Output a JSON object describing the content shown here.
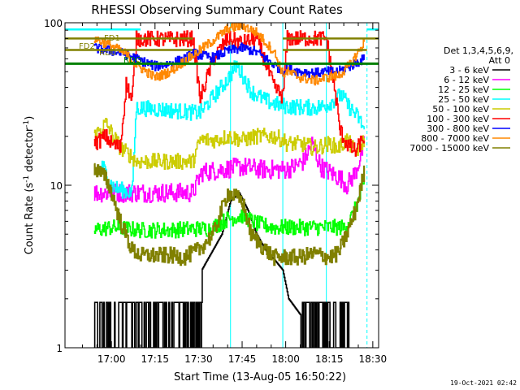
{
  "chart_data": {
    "type": "line",
    "title": "RHESSI Observing Summary Count Rates",
    "xlabel": "Start Time (13-Aug-05 16:50:22)",
    "ylabel_main": "Count Rate (s",
    "ylabel_sup1": "-1",
    "ylabel_mid": " detector",
    "ylabel_sup2": "-1",
    "ylabel_end": ")",
    "y_scale": "log",
    "ylim": [
      1,
      100
    ],
    "xlim_minutes": [
      -6,
      102
    ],
    "y_ticks": [
      "1",
      "10",
      "100"
    ],
    "x_ticks": [
      {
        "m": 10,
        "label": "17:00"
      },
      {
        "m": 25,
        "label": "17:15"
      },
      {
        "m": 40,
        "label": "17:30"
      },
      {
        "m": 55,
        "label": "17:45"
      },
      {
        "m": 70,
        "label": "18:00"
      },
      {
        "m": 85,
        "label": "18:15"
      },
      {
        "m": 100,
        "label": "18:30"
      }
    ],
    "legend_header": [
      "Det 1,3,4,5,6,9,",
      "Att 0"
    ],
    "legend_position": "right",
    "flags": [
      "FD1",
      "FD2",
      "RD0",
      "RDG"
    ],
    "timestamp": "19-Oct-2021 02:42",
    "series": [
      {
        "name": "3 - 6 keV",
        "color": "#000000",
        "x": [
          4,
          18,
          19,
          28,
          29,
          36,
          41,
          48,
          51,
          54,
          57,
          60,
          63,
          66,
          69,
          71,
          75,
          78,
          80,
          84,
          87,
          90,
          92
        ],
        "y": [
          1.5,
          1.5,
          1.4,
          1.4,
          1.5,
          1.5,
          3.0,
          5.0,
          8.0,
          9.0,
          7.0,
          5.0,
          4.0,
          3.5,
          3.0,
          2.0,
          1.6,
          1.5,
          1.5,
          1.6,
          1.5,
          1.5,
          1.5
        ]
      },
      {
        "name": "6 - 12 keV",
        "color": "#ff00ff",
        "x": [
          4,
          10,
          20,
          30,
          38,
          41,
          48,
          55,
          62,
          66,
          70,
          73,
          76,
          79,
          82,
          85,
          89,
          91,
          94,
          97
        ],
        "y": [
          9,
          9,
          9,
          9,
          9,
          12,
          12.5,
          13,
          12.5,
          12.5,
          12.5,
          13,
          14,
          18,
          13,
          12,
          11,
          10,
          12,
          18
        ]
      },
      {
        "name": "12 - 25 keV",
        "color": "#00ff00",
        "x": [
          4,
          10,
          20,
          30,
          38,
          44,
          50,
          55,
          60,
          66,
          69,
          75,
          80,
          85,
          90,
          93,
          97
        ],
        "y": [
          5.3,
          5.5,
          5.3,
          5.3,
          5.4,
          5.4,
          6.2,
          6.5,
          5.8,
          5.5,
          5.5,
          5.5,
          5.5,
          5.5,
          5.5,
          6.5,
          10
        ]
      },
      {
        "name": "25 - 50 keV",
        "color": "#00ffff",
        "x": [
          4,
          7,
          10,
          12,
          17,
          18.5,
          30,
          38,
          40.5,
          45,
          50,
          53,
          55,
          58,
          62,
          65,
          69,
          70.5,
          80,
          84,
          87,
          89,
          92,
          95,
          97
        ],
        "y": [
          12,
          13,
          10,
          9.5,
          9,
          30,
          29,
          28,
          28,
          35,
          45,
          55,
          48,
          38,
          34,
          32,
          31,
          30.5,
          30,
          31,
          34,
          36,
          30,
          26,
          22
        ]
      },
      {
        "name": "50 - 100 keV",
        "color": "#cccc00",
        "x": [
          4,
          8,
          10,
          13,
          17,
          18.5,
          30,
          38,
          40.5,
          46,
          50,
          55,
          60,
          66,
          69,
          70.5,
          75,
          80,
          85,
          88,
          91,
          94,
          97
        ],
        "y": [
          20,
          24,
          21,
          17,
          15,
          14,
          14,
          14,
          19,
          19,
          20,
          19,
          20,
          20,
          19,
          18,
          18,
          17,
          18,
          17,
          19,
          16,
          19
        ]
      },
      {
        "name": "100 - 300 keV",
        "color": "#ff0000",
        "x": [
          4,
          8,
          10,
          13,
          15,
          16,
          17,
          18.5,
          30,
          38,
          40.5,
          45,
          50,
          55,
          60,
          66,
          69,
          70.5,
          80,
          84,
          87.5,
          88.5,
          91,
          94,
          97
        ],
        "y": [
          18,
          20,
          18,
          17,
          42,
          38,
          33,
          80,
          79,
          80,
          34,
          60,
          80,
          75,
          80,
          40,
          35,
          80,
          80,
          80,
          32,
          22,
          18,
          16,
          20
        ]
      },
      {
        "name": "300 - 800 keV",
        "color": "#0000ff",
        "x": [
          4,
          10,
          15,
          18.5,
          25,
          30,
          35,
          38,
          40.5,
          45,
          50,
          55,
          60,
          66,
          69,
          70.5,
          75,
          80,
          84,
          88,
          92,
          97
        ],
        "y": [
          70,
          67,
          64,
          60,
          54,
          56,
          60,
          65,
          63,
          61,
          67,
          70,
          66,
          55,
          50,
          52,
          50,
          49,
          50,
          50,
          54,
          60
        ]
      },
      {
        "name": "800 - 7000 keV",
        "color": "#ff8800",
        "x": [
          4,
          10,
          15,
          18.5,
          25,
          30,
          35,
          38,
          40.5,
          45,
          50,
          55,
          60,
          66,
          69,
          70.5,
          75,
          80,
          84,
          88,
          92,
          97
        ],
        "y": [
          80,
          72,
          64,
          55,
          46,
          50,
          58,
          63,
          68,
          78,
          92,
          96,
          87,
          66,
          48,
          50,
          46,
          44,
          46,
          47,
          55,
          75
        ]
      },
      {
        "name": "7000 - 15000 keV",
        "color": "#808000",
        "x": [
          4,
          8,
          10,
          13,
          17,
          20,
          25,
          30,
          35,
          40,
          45,
          50,
          55,
          58,
          63,
          66,
          70,
          75,
          80,
          85,
          88,
          91,
          94,
          97
        ],
        "y": [
          13,
          11,
          9,
          6,
          4,
          3.7,
          3.7,
          3.7,
          3.6,
          4,
          5,
          9,
          8,
          5,
          4,
          3.6,
          3.6,
          3.6,
          3.8,
          3.6,
          3.8,
          5,
          7,
          12
        ]
      }
    ],
    "flag_lines": [
      {
        "name": "FD1",
        "color": "#00ffff",
        "segments": [
          [
            -6,
            20
          ],
          [
            98,
            102
          ]
        ],
        "y": 91
      },
      {
        "name": "FD2",
        "color": "#808000",
        "segments": [
          [
            -6,
            38
          ],
          [
            69,
            102
          ]
        ],
        "y": 80
      },
      {
        "name": "RD0",
        "color": "#808000",
        "segments": [
          [
            -6,
            38
          ],
          [
            69,
            98
          ]
        ],
        "y": 68
      },
      {
        "name": "RDG",
        "color": "#008000",
        "segments": [
          [
            -6,
            102
          ]
        ],
        "y": 56
      }
    ],
    "vertical_markers": {
      "color": "#00ffff",
      "x": [
        -6,
        51,
        69,
        84
      ],
      "dashed_x": [
        98
      ]
    }
  }
}
